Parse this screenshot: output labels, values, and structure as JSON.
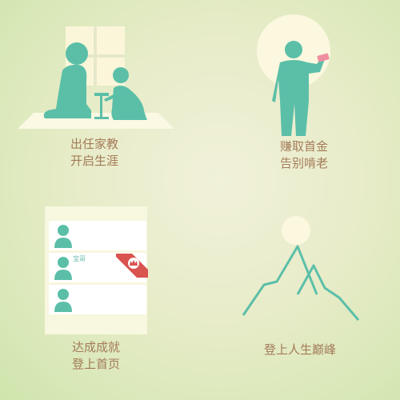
{
  "panels": [
    {
      "caption_line1": "出任家教",
      "caption_line2": "开启生涯"
    },
    {
      "caption_line1": "赚取首金",
      "caption_line2": "告别啃老"
    },
    {
      "caption_line1": "达成成就",
      "caption_line2": "登上首页"
    },
    {
      "caption_line1": "登上人生巅峰"
    }
  ],
  "achievement_list": {
    "rows": [
      {
        "name": ""
      },
      {
        "name": "宝哥"
      },
      {
        "name": ""
      }
    ]
  },
  "colors": {
    "figure_teal": "#5bbfa8",
    "caption_brown": "#a37b58",
    "ribbon_red": "#d9534f",
    "sun_cream": "#fbf8df"
  },
  "icons": [
    "teacher-figure-icon",
    "student-figure-icon",
    "man-with-money-icon",
    "crown-icon",
    "mountain-icon",
    "sun-icon"
  ]
}
